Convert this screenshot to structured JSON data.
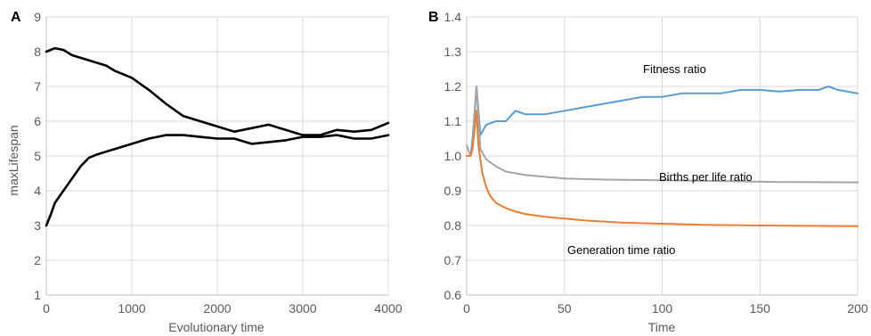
{
  "chart_data": [
    {
      "type": "line",
      "panel_label": "A",
      "xlabel": "Evolutionary time",
      "ylabel": "maxLifespan",
      "xlim": [
        0,
        4000
      ],
      "ylim": [
        1,
        9
      ],
      "x_ticks": [
        "0",
        "1000",
        "2000",
        "3000",
        "4000"
      ],
      "y_ticks": [
        "1",
        "2",
        "3",
        "4",
        "5",
        "6",
        "7",
        "8",
        "9"
      ],
      "grid": true,
      "legend": "none",
      "colors": {
        "line": "#000000",
        "grid": "#d9d9d9"
      },
      "series": [
        {
          "x": [
            0,
            100,
            200,
            300,
            500,
            700,
            800,
            1000,
            1200,
            1400,
            1600,
            1800,
            2000,
            2200,
            2400,
            2600,
            2800,
            3000,
            3200,
            3400,
            3600,
            3800,
            4000
          ],
          "y": [
            8.0,
            8.1,
            8.05,
            7.9,
            7.75,
            7.6,
            7.45,
            7.25,
            6.9,
            6.5,
            6.15,
            6.0,
            5.85,
            5.7,
            5.8,
            5.9,
            5.75,
            5.6,
            5.6,
            5.75,
            5.7,
            5.75,
            5.95
          ]
        },
        {
          "x": [
            0,
            50,
            100,
            200,
            300,
            400,
            500,
            600,
            800,
            1000,
            1200,
            1400,
            1600,
            1800,
            2000,
            2200,
            2400,
            2600,
            2800,
            3000,
            3200,
            3400,
            3600,
            3800,
            4000
          ],
          "y": [
            3.0,
            3.3,
            3.65,
            4.0,
            4.35,
            4.7,
            4.95,
            5.05,
            5.2,
            5.35,
            5.5,
            5.6,
            5.6,
            5.55,
            5.5,
            5.5,
            5.35,
            5.4,
            5.45,
            5.55,
            5.55,
            5.6,
            5.5,
            5.5,
            5.6
          ]
        }
      ]
    },
    {
      "type": "line",
      "panel_label": "B",
      "xlabel": "Time",
      "ylabel": "",
      "xlim": [
        0,
        200
      ],
      "ylim": [
        0.6,
        1.4
      ],
      "x_ticks": [
        "0",
        "50",
        "100",
        "150",
        "200"
      ],
      "y_ticks": [
        "0.6",
        "0.7",
        "0.8",
        "0.9",
        "1.0",
        "1.1",
        "1.2",
        "1.3",
        "1.4"
      ],
      "grid": true,
      "legend": "none",
      "colors": {
        "grid": "#d9d9d9"
      },
      "series": [
        {
          "name": "Fitness ratio",
          "color": "#5b9bd5",
          "x": [
            0,
            2,
            3,
            5,
            7,
            10,
            15,
            20,
            25,
            30,
            40,
            50,
            60,
            70,
            80,
            90,
            100,
            110,
            120,
            130,
            140,
            150,
            160,
            170,
            180,
            185,
            190,
            200
          ],
          "y": [
            1.0,
            1.0,
            1.05,
            1.2,
            1.06,
            1.09,
            1.1,
            1.1,
            1.13,
            1.12,
            1.12,
            1.13,
            1.14,
            1.15,
            1.16,
            1.17,
            1.17,
            1.18,
            1.18,
            1.18,
            1.19,
            1.19,
            1.185,
            1.19,
            1.19,
            1.2,
            1.19,
            1.18
          ]
        },
        {
          "name": "Births per life ratio",
          "color": "#a5a5a5",
          "x": [
            0,
            2,
            3,
            5,
            7,
            10,
            15,
            20,
            30,
            40,
            50,
            70,
            100,
            130,
            160,
            200
          ],
          "y": [
            1.03,
            1.0,
            1.03,
            1.2,
            1.02,
            0.99,
            0.97,
            0.955,
            0.945,
            0.94,
            0.935,
            0.932,
            0.93,
            0.928,
            0.925,
            0.924
          ]
        },
        {
          "name": "Generation time ratio",
          "color": "#ed7d31",
          "x": [
            0,
            2,
            3,
            5,
            6,
            8,
            10,
            12,
            15,
            20,
            25,
            30,
            40,
            50,
            60,
            80,
            100,
            120,
            150,
            200
          ],
          "y": [
            1.0,
            1.0,
            1.02,
            1.13,
            1.03,
            0.95,
            0.91,
            0.885,
            0.865,
            0.85,
            0.84,
            0.833,
            0.825,
            0.82,
            0.815,
            0.808,
            0.805,
            0.802,
            0.8,
            0.798
          ]
        }
      ],
      "annotations": [
        {
          "text": "Fitness ratio",
          "series": "Fitness ratio"
        },
        {
          "text": "Births per life ratio",
          "series": "Births per life ratio"
        },
        {
          "text": "Generation time ratio",
          "series": "Generation time ratio"
        }
      ]
    }
  ]
}
